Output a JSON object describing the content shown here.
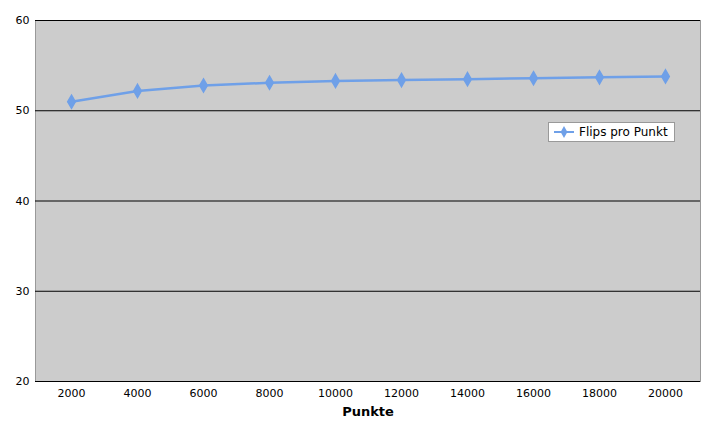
{
  "chart_data": {
    "type": "line",
    "x_label": "Punkte",
    "categories": [
      2000,
      4000,
      6000,
      8000,
      10000,
      12000,
      14000,
      16000,
      18000,
      20000
    ],
    "series": [
      {
        "name": "Flips pro Punkt",
        "color": "#6fa0e8",
        "marker": "diamond",
        "values": [
          51.0,
          52.2,
          52.8,
          53.1,
          53.3,
          53.4,
          53.5,
          53.6,
          53.7,
          53.8
        ]
      }
    ],
    "ylim": [
      20,
      60
    ],
    "yticks": [
      20,
      30,
      40,
      50,
      60
    ],
    "grid": true,
    "legend": "right"
  }
}
